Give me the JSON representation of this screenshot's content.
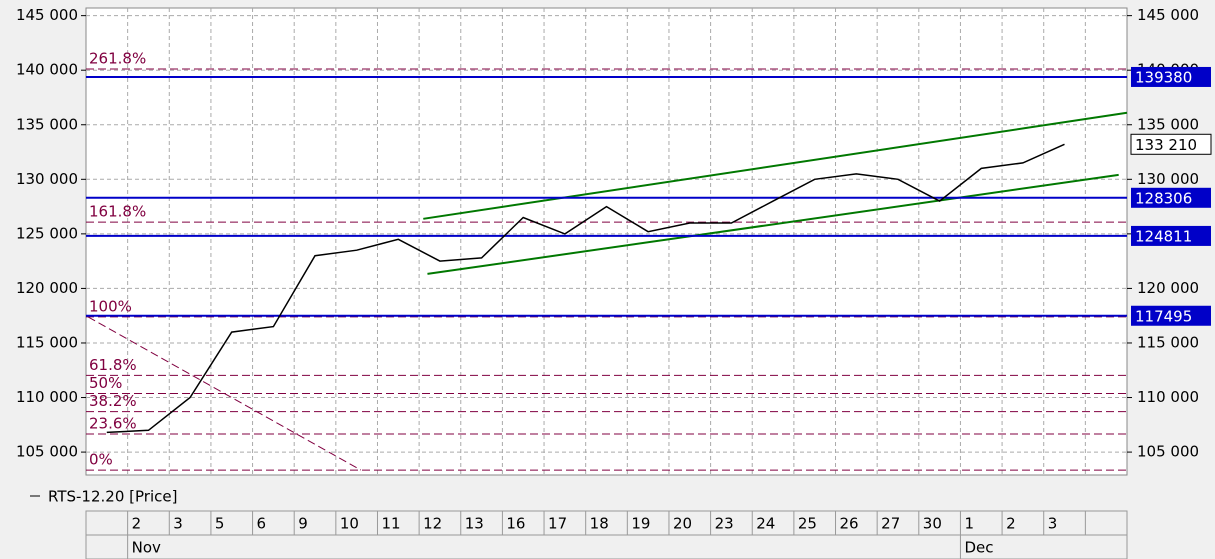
{
  "chart_data": {
    "type": "line",
    "legend": "RTS-12.20 [Price]",
    "categories": [
      null,
      "2",
      "3",
      "5",
      "6",
      "9",
      "10",
      "11",
      "12",
      "13",
      "16",
      "17",
      "18",
      "19",
      "20",
      "23",
      "24",
      "25",
      "26",
      "27",
      "30",
      "1",
      "2",
      "3",
      null
    ],
    "months": [
      {
        "index": 1,
        "label": "Nov"
      },
      {
        "index": 21,
        "label": "Dec"
      }
    ],
    "series": [
      {
        "name": "RTS-12.20",
        "color": "#000000",
        "values": [
          106800,
          107000,
          110000,
          116000,
          116500,
          123000,
          123500,
          124500,
          122500,
          122800,
          126500,
          125000,
          127500,
          125200,
          126000,
          126000,
          128000,
          130000,
          130500,
          130000,
          128000,
          131000,
          131500,
          133210,
          null
        ]
      }
    ],
    "last_price": {
      "value": 133210,
      "label": "133 210"
    },
    "ylim": [
      102900,
      145700
    ],
    "yticks": [
      {
        "value": 105000,
        "label": "105 000"
      },
      {
        "value": 110000,
        "label": "110 000"
      },
      {
        "value": 115000,
        "label": "115 000"
      },
      {
        "value": 120000,
        "label": "120 000"
      },
      {
        "value": 125000,
        "label": "125 000"
      },
      {
        "value": 130000,
        "label": "130 000"
      },
      {
        "value": 135000,
        "label": "135 000"
      },
      {
        "value": 140000,
        "label": "140 000"
      },
      {
        "value": 145000,
        "label": "145 000"
      }
    ],
    "grid": true,
    "levels": [
      139380,
      128306,
      124811,
      117495
    ],
    "level_color": "#0000c8",
    "fibonacci": {
      "color": "#800040",
      "x": [
        0.05,
        6.6
      ],
      "lines": [
        {
          "label": "0%",
          "value": 103350
        },
        {
          "label": "23.6%",
          "value": 106660
        },
        {
          "label": "38.2%",
          "value": 108710
        },
        {
          "label": "50%",
          "value": 110370
        },
        {
          "label": "61.8%",
          "value": 112030
        },
        {
          "label": "100%",
          "value": 117390
        },
        {
          "label": "161.8%",
          "value": 126070
        },
        {
          "label": "261.8%",
          "value": 140110
        }
      ]
    },
    "channel": {
      "color": "#007800",
      "lines": [
        {
          "x": [
            8.1,
            25
          ],
          "values": [
            126380,
            136100
          ]
        },
        {
          "x": [
            8.2,
            24.8
          ],
          "values": [
            121330,
            130410
          ]
        }
      ]
    }
  }
}
